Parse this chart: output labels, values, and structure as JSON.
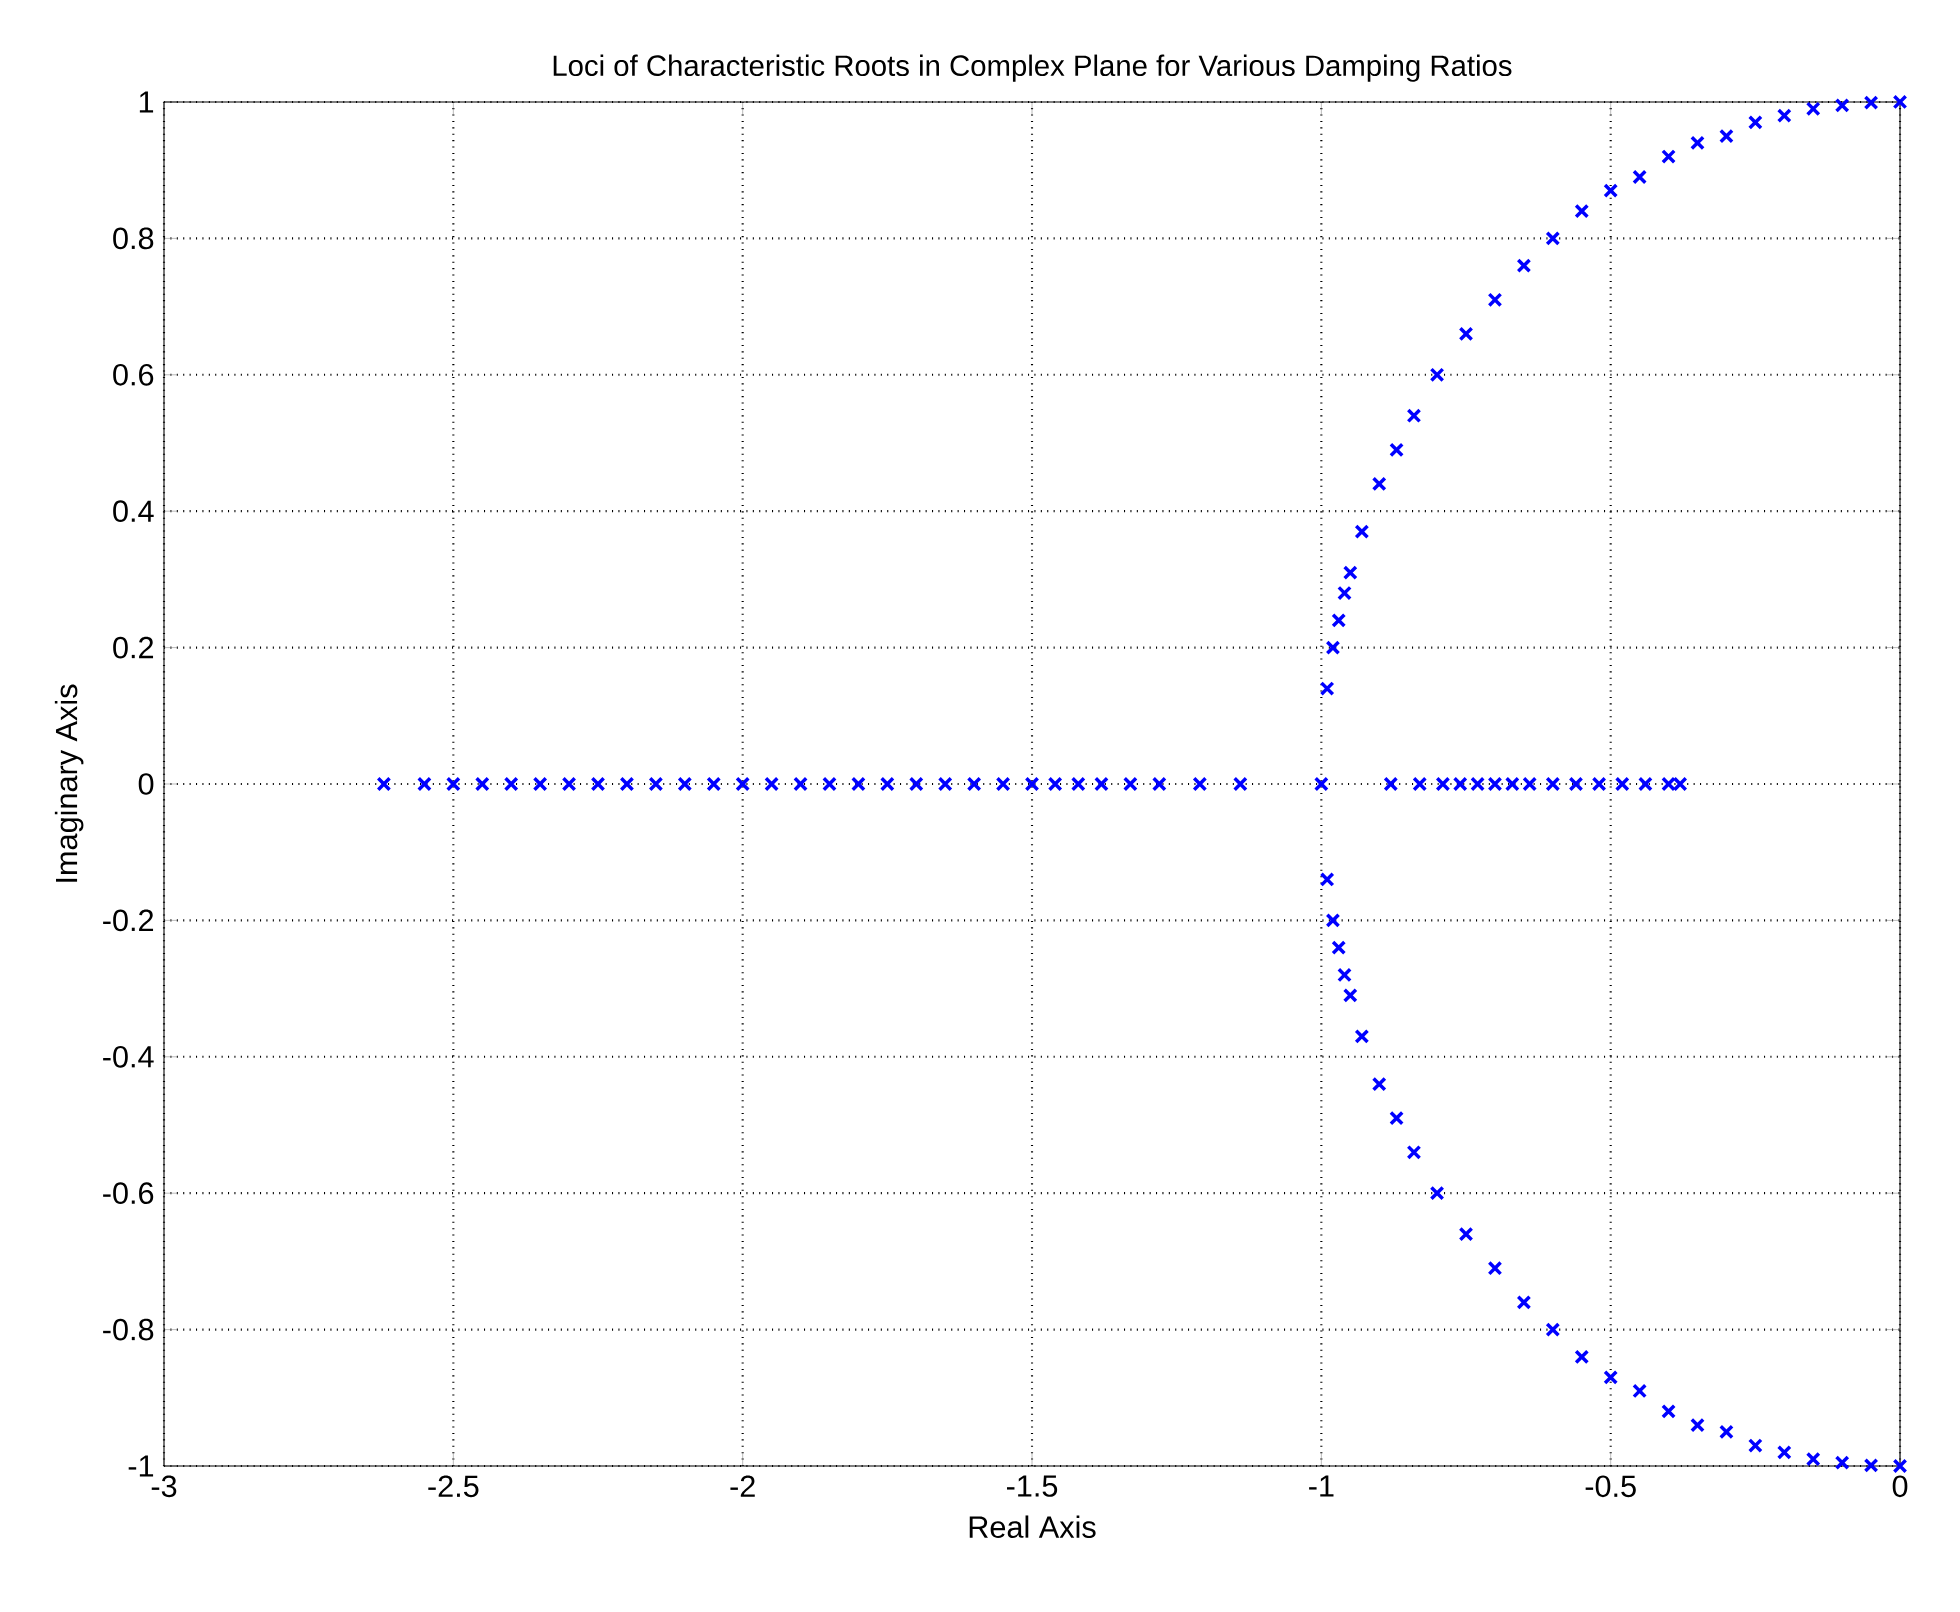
{
  "chart_data": {
    "type": "scatter",
    "title": "Loci of Characteristic Roots in Complex Plane for Various Damping Ratios",
    "xlabel": "Real Axis",
    "ylabel": "Imaginary Axis",
    "xlim": [
      -3,
      0
    ],
    "ylim": [
      -1,
      1
    ],
    "xticks": [
      -3,
      -2.5,
      -2,
      -1.5,
      -1,
      -0.5,
      0
    ],
    "yticks": [
      -1,
      -0.8,
      -0.6,
      -0.4,
      -0.2,
      0,
      0.2,
      0.4,
      0.6,
      0.8,
      1
    ],
    "grid": true,
    "marker": "cross",
    "series": [
      {
        "color": "#0000ff",
        "x": [
          -0.99,
          -0.98,
          -0.97,
          -0.96,
          -0.95,
          -0.93,
          -0.9,
          -0.87,
          -0.84,
          -0.8,
          -0.75,
          -0.7,
          -0.65,
          -0.6,
          -0.55,
          -0.5,
          -0.45,
          -0.4,
          -0.35,
          -0.3,
          -0.25,
          -0.2,
          -0.15,
          -0.1,
          -0.05,
          0
        ],
        "values": [
          0.14,
          0.2,
          0.24,
          0.28,
          0.31,
          0.37,
          0.44,
          0.49,
          0.54,
          0.6,
          0.66,
          0.71,
          0.76,
          0.8,
          0.84,
          0.87,
          0.89,
          0.92,
          0.94,
          0.95,
          0.97,
          0.98,
          0.99,
          0.995,
          0.999,
          1
        ]
      },
      {
        "color": "#0000ff",
        "x": [
          -0.99,
          -0.98,
          -0.97,
          -0.96,
          -0.95,
          -0.93,
          -0.9,
          -0.87,
          -0.84,
          -0.8,
          -0.75,
          -0.7,
          -0.65,
          -0.6,
          -0.55,
          -0.5,
          -0.45,
          -0.4,
          -0.35,
          -0.3,
          -0.25,
          -0.2,
          -0.15,
          -0.1,
          -0.05,
          0
        ],
        "values": [
          -0.14,
          -0.2,
          -0.24,
          -0.28,
          -0.31,
          -0.37,
          -0.44,
          -0.49,
          -0.54,
          -0.6,
          -0.66,
          -0.71,
          -0.76,
          -0.8,
          -0.84,
          -0.87,
          -0.89,
          -0.92,
          -0.94,
          -0.95,
          -0.97,
          -0.98,
          -0.99,
          -0.995,
          -0.999,
          -1
        ]
      },
      {
        "color": "#0000ff",
        "x": [
          -2.62,
          -2.55,
          -2.5,
          -2.45,
          -2.4,
          -2.35,
          -2.3,
          -2.25,
          -2.2,
          -2.15,
          -2.1,
          -2.05,
          -2,
          -1.95,
          -1.9,
          -1.85,
          -1.8,
          -1.75,
          -1.7,
          -1.65,
          -1.6,
          -1.55,
          -1.5,
          -1.46,
          -1.42,
          -1.38,
          -1.33,
          -1.28,
          -1.21,
          -1.14,
          -1,
          -0.88,
          -0.83,
          -0.79,
          -0.76,
          -0.73,
          -0.7,
          -0.67,
          -0.64,
          -0.6,
          -0.56,
          -0.52,
          -0.48,
          -0.44,
          -0.4,
          -0.38
        ],
        "values": [
          0,
          0,
          0,
          0,
          0,
          0,
          0,
          0,
          0,
          0,
          0,
          0,
          0,
          0,
          0,
          0,
          0,
          0,
          0,
          0,
          0,
          0,
          0,
          0,
          0,
          0,
          0,
          0,
          0,
          0,
          0,
          0,
          0,
          0,
          0,
          0,
          0,
          0,
          0,
          0,
          0,
          0,
          0,
          0,
          0,
          0
        ]
      }
    ]
  }
}
